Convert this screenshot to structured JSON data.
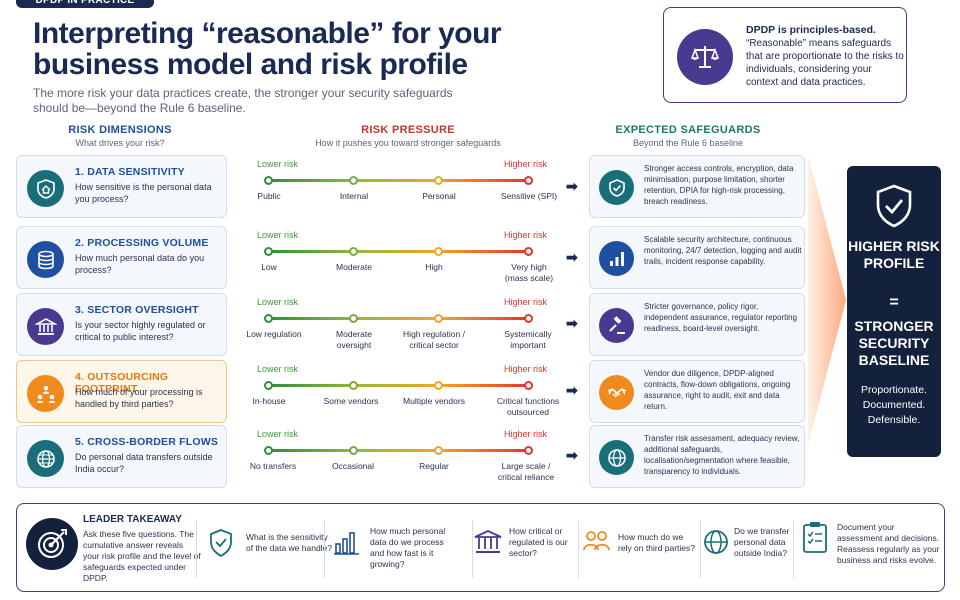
{
  "top_tag": "DPDP IN PRACTICE",
  "title": "Interpreting “reasonable” for your business model and risk profile",
  "subtitle": "The more risk your data practices create, the stronger your security safeguards should be—beyond the Rule 6 baseline.",
  "principles": {
    "heading": "DPDP is principles-based.",
    "body": "“Reasonable” means safeguards that are proportionate to the risks to individuals, considering your context and data practices.",
    "icon": "scales-icon"
  },
  "columns": {
    "dimensions": {
      "title": "RISK DIMENSIONS",
      "sub": "What drives your risk?"
    },
    "pressure": {
      "title": "RISK PRESSURE",
      "sub": "How it pushes you toward stronger safeguards"
    },
    "safeguards": {
      "title": "EXPECTED SAFEGUARDS",
      "sub": "Beyond the Rule 6 baseline"
    }
  },
  "scale_labels": {
    "low": "Lower risk",
    "high": "Higher risk"
  },
  "rows": [
    {
      "title": "1. DATA SENSITIVITY",
      "question": "How sensitive is the personal data you process?",
      "icon": "shield-home-icon",
      "levels": [
        "Public",
        "Internal",
        "Personal",
        "Sensitive (SPI)"
      ],
      "safeguard": "Stronger access controls, encryption, data minimisation, purpose limitation, shorter retention, DPIA for high-risk processing, breach readiness.",
      "safeguard_icon": "shield-check-icon"
    },
    {
      "title": "2. PROCESSING VOLUME",
      "question": "How much personal data do you process?",
      "icon": "database-icon",
      "levels": [
        "Low",
        "Moderate",
        "High",
        "Very high (mass scale)"
      ],
      "safeguard": "Scalable security architecture, continuous monitoring, 24/7 detection, logging and audit trails, incident response capability.",
      "safeguard_icon": "bar-chart-icon"
    },
    {
      "title": "3. SECTOR OVERSIGHT",
      "question": "Is your sector highly regulated or critical to public interest?",
      "icon": "institution-icon",
      "levels": [
        "Low regulation",
        "Moderate oversight",
        "High regulation / critical sector",
        "Systemically important"
      ],
      "safeguard": "Stricter governance, policy rigor, independent assurance, regulator reporting readiness, board-level oversight.",
      "safeguard_icon": "gavel-icon"
    },
    {
      "title": "4. OUTSOURCING FOOTPRINT",
      "question": "How much of your processing is handled by third parties?",
      "icon": "people-network-icon",
      "levels": [
        "In-house",
        "Some vendors",
        "Multiple vendors",
        "Critical functions outsourced"
      ],
      "safeguard": "Vendor due diligence, DPDP-aligned contracts, flow-down obligations, ongoing assurance, right to audit, exit and data return.",
      "safeguard_icon": "handshake-icon"
    },
    {
      "title": "5. CROSS-BORDER FLOWS",
      "question": "Do personal data transfers outside India occur?",
      "icon": "globe-icon",
      "levels": [
        "No transfers",
        "Occasional",
        "Regular",
        "Large scale / critical reliance"
      ],
      "safeguard": "Transfer risk assessment, adequacy review, additional safeguards, localisation/segmentation where feasible, transparency to individuals.",
      "safeguard_icon": "globe-icon"
    }
  ],
  "big_card": {
    "line1": "HIGHER RISK PROFILE",
    "equals": "=",
    "line2": "STRONGER SECURITY BASELINE",
    "tagline": "Proportionate. Documented. Defensible."
  },
  "takeaway": {
    "title": "LEADER TAKEAWAY",
    "body": "Ask these five questions. The cumulative answer reveals your risk profile and the level of safeguards expected under DPDP.",
    "questions": [
      {
        "text": "What is the sensitivity of the data we handle?",
        "icon": "shield-check-icon"
      },
      {
        "text": "How much personal data do we process and how fast is it growing?",
        "icon": "bar-chart-icon"
      },
      {
        "text": "How critical or regulated is our sector?",
        "icon": "institution-icon"
      },
      {
        "text": "How much do we rely on third parties?",
        "icon": "people-icon"
      },
      {
        "text": "Do we transfer personal data outside India?",
        "icon": "globe-icon"
      },
      {
        "text": "Document your assessment and decisions. Reassess regularly as your business and risks evolve.",
        "icon": "clipboard-check-icon"
      }
    ]
  },
  "colors": {
    "navy": "#14213d",
    "blue_title": "#1f4fa0",
    "orange_title": "#e07a14",
    "low_green": "#3b9a3b",
    "high_red": "#e0322b",
    "teal_icon": "#1a6e7a",
    "blue_icon": "#1f4fa0",
    "purple_icon": "#4a3a8f",
    "orange_icon": "#f08a1c"
  }
}
